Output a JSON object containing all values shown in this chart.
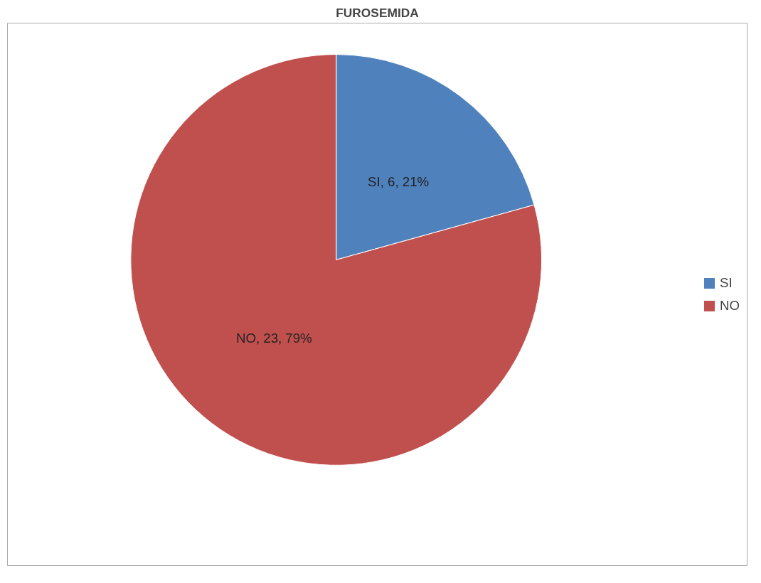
{
  "chart_data": {
    "type": "pie",
    "title": "FUROSEMIDA",
    "categories": [
      "SI",
      "NO"
    ],
    "values": [
      6,
      23
    ],
    "colors": [
      "#4f81bd",
      "#c0504d"
    ],
    "value_labels": [
      "SI, 6, 21%",
      "NO, 23, 79%"
    ],
    "legend": "right"
  }
}
